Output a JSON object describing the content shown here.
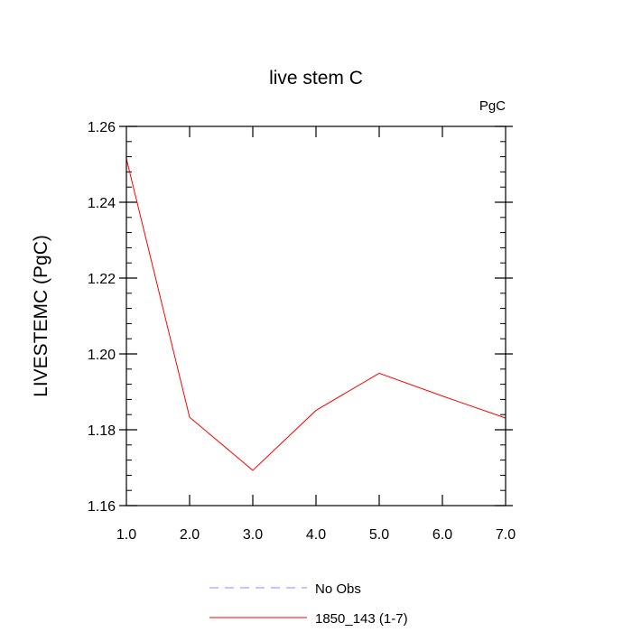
{
  "chart_data": {
    "type": "line",
    "title": "live stem C",
    "units": "PgC",
    "xlabel": "",
    "ylabel": "LIVESTEMC  (PgC)",
    "xlim": [
      1.0,
      7.0
    ],
    "ylim": [
      1.16,
      1.26
    ],
    "x_ticks": [
      "1.0",
      "2.0",
      "3.0",
      "4.0",
      "5.0",
      "6.0",
      "7.0"
    ],
    "y_ticks": [
      "1.16",
      "1.18",
      "1.20",
      "1.22",
      "1.24",
      "1.26"
    ],
    "grid": false,
    "legend_position": "bottom",
    "series": [
      {
        "name": "1850_143 (1-7)",
        "color": "#ff0000",
        "style": "solid",
        "x": [
          1,
          2,
          3,
          4,
          5,
          6,
          7
        ],
        "values": [
          1.2515,
          1.1833,
          1.1693,
          1.1851,
          1.1949,
          1.1889,
          1.1831
        ]
      }
    ],
    "legend": [
      {
        "label": "No Obs",
        "color": "#8c8cff",
        "style": "dashed"
      },
      {
        "label": "1850_143 (1-7)",
        "color": "#ff0000",
        "style": "solid"
      }
    ]
  }
}
